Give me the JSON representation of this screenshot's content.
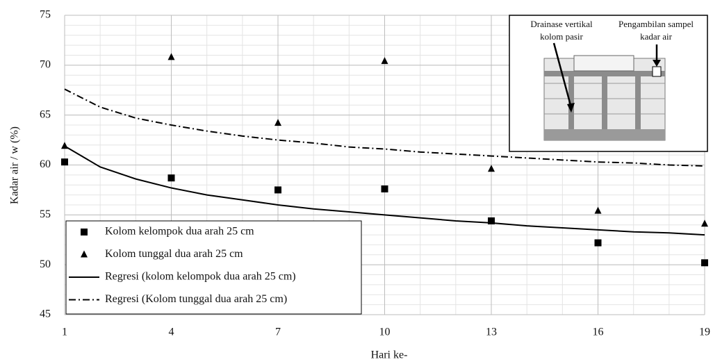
{
  "chart_data": {
    "type": "scatter",
    "x_label": "Hari ke-",
    "y_label": "Kadar air / w (%)",
    "xlim": [
      1,
      19
    ],
    "xticks": [
      1,
      4,
      7,
      10,
      13,
      16,
      19
    ],
    "ylim": [
      45,
      75
    ],
    "yticks": [
      45,
      50,
      55,
      60,
      65,
      70,
      75
    ],
    "grid": true,
    "minor_step": 1,
    "legend": "lower left",
    "series": [
      {
        "name": "Kolom kelompok dua arah 25 cm",
        "color": "#000000",
        "marker": "square",
        "x": [
          1,
          4,
          7,
          10,
          13,
          16,
          19
        ],
        "values": [
          60.3,
          58.7,
          57.5,
          57.6,
          54.4,
          52.2,
          50.2
        ]
      },
      {
        "name": "Kolom tunggal dua arah 25 cm",
        "color": "#000000",
        "marker": "triangle",
        "x": [
          1,
          4,
          7,
          10,
          13,
          16,
          19
        ],
        "values": [
          61.9,
          70.8,
          64.2,
          70.4,
          59.6,
          55.4,
          54.1
        ]
      },
      {
        "name": "Regresi (kolom kelompok dua arah 25 cm)",
        "color": "#000000",
        "marker": "none",
        "dash": "solid",
        "x": [
          1,
          2,
          3,
          4,
          5,
          6,
          7,
          8,
          9,
          10,
          11,
          12,
          13,
          14,
          15,
          16,
          17,
          18,
          19
        ],
        "values": [
          61.9,
          59.8,
          58.6,
          57.7,
          57.0,
          56.5,
          56.0,
          55.6,
          55.3,
          55.0,
          54.7,
          54.4,
          54.2,
          53.9,
          53.7,
          53.5,
          53.3,
          53.2,
          53.0
        ]
      },
      {
        "name": "Regresi (Kolom tunggal dua arah 25 cm)",
        "color": "#000000",
        "marker": "none",
        "dash": "dashdot",
        "x": [
          1,
          2,
          3,
          4,
          5,
          6,
          7,
          8,
          9,
          10,
          11,
          12,
          13,
          14,
          15,
          16,
          17,
          18,
          19
        ],
        "values": [
          67.6,
          65.8,
          64.7,
          64.0,
          63.4,
          62.9,
          62.5,
          62.2,
          61.8,
          61.6,
          61.3,
          61.1,
          60.9,
          60.7,
          60.5,
          60.3,
          60.2,
          60.0,
          59.9
        ]
      }
    ],
    "inset": {
      "label_left": [
        "Drainase vertikal",
        "kolom pasir"
      ],
      "label_right": [
        "Pengambilan sampel",
        "kadar air"
      ]
    }
  }
}
